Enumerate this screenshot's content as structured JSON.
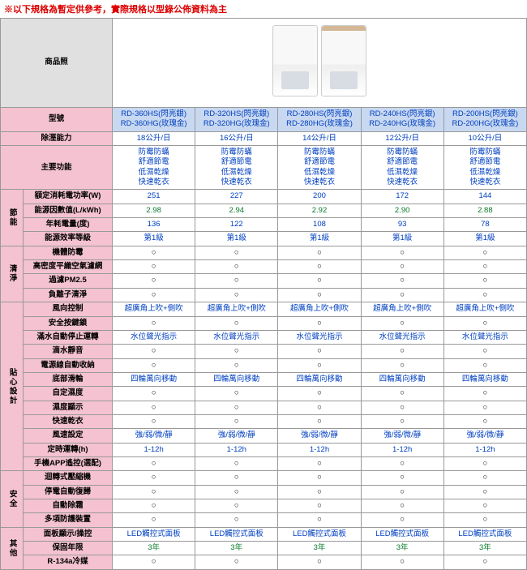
{
  "notice": "※以下規格為暫定供參考，實際規格以型錄公佈資料為主",
  "headers": {
    "photo": "商品照",
    "model": "型號",
    "capacity": "除溼能力",
    "features": "主要功能"
  },
  "models": [
    "RD-360HS(閃亮銀)\nRD-360HG(玫瑰金)",
    "RD-320HS(閃亮銀)\nRD-320HG(玫瑰金)",
    "RD-280HS(閃亮銀)\nRD-280HG(玫瑰金)",
    "RD-240HS(閃亮銀)\nRD-240HG(玫瑰金)",
    "RD-200HS(閃亮銀)\nRD-200HG(玫瑰金)"
  ],
  "capacity_row": [
    "18公升/日",
    "16公升/日",
    "14公升/日",
    "12公升/日",
    "10公升/日"
  ],
  "features_row": [
    "防霉防蟎\n舒適節電\n低濕乾燥\n快速乾衣",
    "防霉防蟎\n舒適節電\n低濕乾燥\n快速乾衣",
    "防霉防蟎\n舒適節電\n低濕乾燥\n快速乾衣",
    "防霉防蟎\n舒適節電\n低濕乾燥\n快速乾衣",
    "防霉防蟎\n舒適節電\n低濕乾燥\n快速乾衣"
  ],
  "categories": [
    {
      "name": "節能",
      "rows": [
        {
          "label": "額定消耗電功率(W)",
          "style": "blue",
          "vals": [
            "251",
            "227",
            "200",
            "172",
            "144"
          ]
        },
        {
          "label": "能源因數值(L/kWh)",
          "style": "green",
          "vals": [
            "2.98",
            "2.94",
            "2.92",
            "2.90",
            "2.88"
          ]
        },
        {
          "label": "年耗電量(度)",
          "style": "blue",
          "vals": [
            "136",
            "122",
            "108",
            "93",
            "78"
          ]
        },
        {
          "label": "能源效率等級",
          "style": "blue",
          "vals": [
            "第1級",
            "第1級",
            "第1級",
            "第1級",
            "第1級"
          ]
        }
      ]
    },
    {
      "name": "清淨",
      "rows": [
        {
          "label": "機體防霉",
          "vals": [
            "○",
            "○",
            "○",
            "○",
            "○"
          ]
        },
        {
          "label": "高密度平織空氣濾網",
          "vals": [
            "○",
            "○",
            "○",
            "○",
            "○"
          ]
        },
        {
          "label": "過濾PM2.5",
          "vals": [
            "○",
            "○",
            "○",
            "○",
            "○"
          ]
        },
        {
          "label": "負離子清淨",
          "vals": [
            "○",
            "○",
            "○",
            "○",
            "○"
          ]
        }
      ]
    },
    {
      "name": "貼心設計",
      "rows": [
        {
          "label": "風向控制",
          "style": "blue",
          "vals": [
            "超廣角上吹+側吹",
            "超廣角上吹+側吹",
            "超廣角上吹+側吹",
            "超廣角上吹+側吹",
            "超廣角上吹+側吹"
          ]
        },
        {
          "label": "安全按鍵鎖",
          "vals": [
            "○",
            "○",
            "○",
            "○",
            "○"
          ]
        },
        {
          "label": "滿水自動停止運轉",
          "style": "blue",
          "vals": [
            "水位聲光指示",
            "水位聲光指示",
            "水位聲光指示",
            "水位聲光指示",
            "水位聲光指示"
          ]
        },
        {
          "label": "滴水靜音",
          "vals": [
            "○",
            "○",
            "○",
            "○",
            "○"
          ]
        },
        {
          "label": "電源線自動收納",
          "vals": [
            "○",
            "○",
            "○",
            "○",
            "○"
          ]
        },
        {
          "label": "底部滑輪",
          "style": "blue",
          "vals": [
            "四輪萬向移動",
            "四輪萬向移動",
            "四輪萬向移動",
            "四輪萬向移動",
            "四輪萬向移動"
          ]
        },
        {
          "label": "自定濕度",
          "vals": [
            "○",
            "○",
            "○",
            "○",
            "○"
          ]
        },
        {
          "label": "濕度顯示",
          "vals": [
            "○",
            "○",
            "○",
            "○",
            "○"
          ]
        },
        {
          "label": "快速乾衣",
          "vals": [
            "○",
            "○",
            "○",
            "○",
            "○"
          ]
        },
        {
          "label": "風速設定",
          "style": "blue",
          "vals": [
            "強/弱/微/靜",
            "強/弱/微/靜",
            "強/弱/微/靜",
            "強/弱/微/靜",
            "強/弱/微/靜"
          ]
        },
        {
          "label": "定時運轉(h)",
          "style": "blue",
          "vals": [
            "1-12h",
            "1-12h",
            "1-12h",
            "1-12h",
            "1-12h"
          ]
        },
        {
          "label": "手機APP遙控(選配)",
          "vals": [
            "○",
            "○",
            "○",
            "○",
            "○"
          ]
        }
      ]
    },
    {
      "name": "安全",
      "rows": [
        {
          "label": "迴轉式壓縮機",
          "vals": [
            "○",
            "○",
            "○",
            "○",
            "○"
          ]
        },
        {
          "label": "停電自動復歸",
          "vals": [
            "○",
            "○",
            "○",
            "○",
            "○"
          ]
        },
        {
          "label": "自動除霜",
          "vals": [
            "○",
            "○",
            "○",
            "○",
            "○"
          ]
        },
        {
          "label": "多項防護裝置",
          "vals": [
            "○",
            "○",
            "○",
            "○",
            "○"
          ]
        }
      ]
    },
    {
      "name": "其他",
      "rows": [
        {
          "label": "面板顯示/操控",
          "style": "blue",
          "vals": [
            "LED觸控式面板",
            "LED觸控式面板",
            "LED觸控式面板",
            "LED觸控式面板",
            "LED觸控式面板"
          ]
        },
        {
          "label": "保固年限",
          "style": "green",
          "vals": [
            "3年",
            "3年",
            "3年",
            "3年",
            "3年"
          ]
        },
        {
          "label": "R-134a冷媒",
          "vals": [
            "○",
            "○",
            "○",
            "○",
            "○"
          ]
        }
      ]
    }
  ]
}
